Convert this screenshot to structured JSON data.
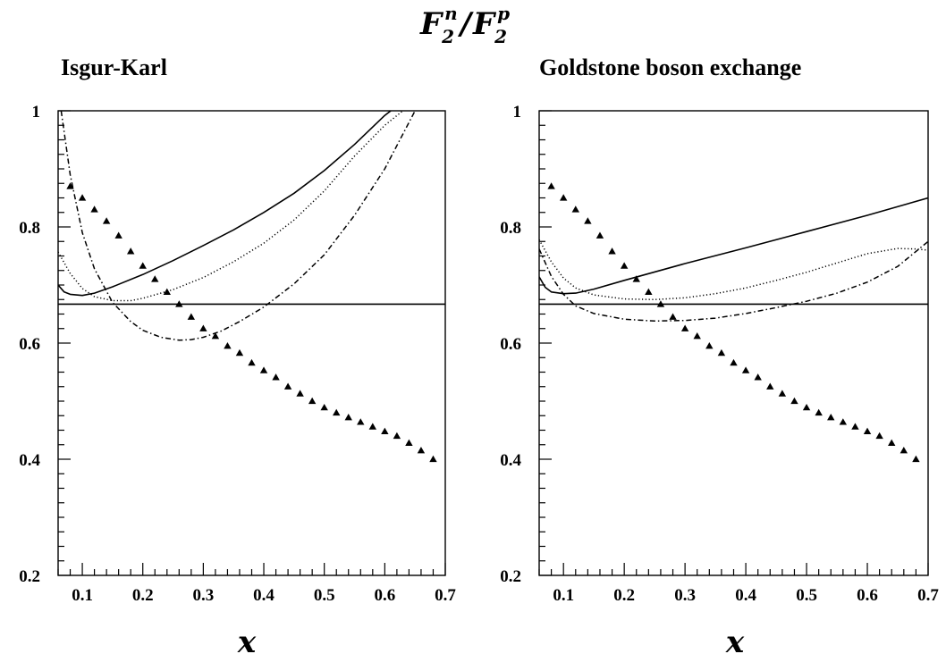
{
  "figure": {
    "title_main": "F",
    "title_sup_n": "n",
    "title_sub_2a": "2",
    "title_slash": "/",
    "title_main2": "F",
    "title_sup_p": "p",
    "title_sub_2b": "2"
  },
  "chart_data": [
    {
      "type": "line",
      "title": "Isgur-Karl",
      "xlabel": "x",
      "ylabel": "",
      "xlim": [
        0.06,
        0.7
      ],
      "ylim": [
        0.2,
        1.0
      ],
      "x_ticks": [
        0.1,
        0.2,
        0.3,
        0.4,
        0.5,
        0.6,
        0.7
      ],
      "x_tick_labels": [
        "0.1",
        "0.2",
        "0.3",
        "0.4",
        "0.5",
        "0.6",
        "0.7"
      ],
      "y_ticks": [
        0.2,
        0.4,
        0.6,
        0.8,
        1.0
      ],
      "y_tick_labels": [
        "0.2",
        "0.4",
        "0.6",
        "0.8",
        "1"
      ],
      "grid": false,
      "reference_line": 0.667,
      "series": [
        {
          "style": "solid",
          "x": [
            0.06,
            0.07,
            0.08,
            0.1,
            0.12,
            0.15,
            0.2,
            0.25,
            0.3,
            0.35,
            0.4,
            0.45,
            0.5,
            0.55,
            0.6,
            0.61
          ],
          "y": [
            0.7,
            0.688,
            0.684,
            0.682,
            0.686,
            0.697,
            0.718,
            0.742,
            0.768,
            0.795,
            0.825,
            0.858,
            0.897,
            0.942,
            0.992,
            1.0
          ]
        },
        {
          "style": "dotted",
          "x": [
            0.06,
            0.08,
            0.1,
            0.12,
            0.15,
            0.18,
            0.2,
            0.25,
            0.3,
            0.35,
            0.4,
            0.45,
            0.5,
            0.55,
            0.6,
            0.63
          ],
          "y": [
            0.757,
            0.72,
            0.694,
            0.68,
            0.673,
            0.673,
            0.677,
            0.692,
            0.713,
            0.74,
            0.772,
            0.812,
            0.862,
            0.922,
            0.975,
            1.0
          ]
        },
        {
          "style": "dashdot",
          "x": [
            0.065,
            0.08,
            0.1,
            0.12,
            0.15,
            0.18,
            0.2,
            0.23,
            0.26,
            0.28,
            0.3,
            0.33,
            0.36,
            0.4,
            0.45,
            0.5,
            0.55,
            0.6,
            0.65
          ],
          "y": [
            1.0,
            0.89,
            0.79,
            0.728,
            0.67,
            0.637,
            0.622,
            0.61,
            0.605,
            0.606,
            0.61,
            0.621,
            0.637,
            0.662,
            0.702,
            0.752,
            0.82,
            0.9,
            1.0
          ]
        },
        {
          "style": "triangles",
          "x": [
            0.08,
            0.1,
            0.12,
            0.14,
            0.16,
            0.18,
            0.2,
            0.22,
            0.24,
            0.26,
            0.28,
            0.3,
            0.32,
            0.34,
            0.36,
            0.38,
            0.4,
            0.42,
            0.44,
            0.46,
            0.48,
            0.5,
            0.52,
            0.54,
            0.56,
            0.58,
            0.6,
            0.62,
            0.64,
            0.66,
            0.68
          ],
          "y": [
            0.87,
            0.85,
            0.83,
            0.81,
            0.785,
            0.758,
            0.733,
            0.71,
            0.688,
            0.667,
            0.645,
            0.625,
            0.612,
            0.595,
            0.583,
            0.566,
            0.553,
            0.541,
            0.525,
            0.513,
            0.5,
            0.489,
            0.48,
            0.472,
            0.464,
            0.456,
            0.448,
            0.44,
            0.428,
            0.415,
            0.4
          ]
        }
      ]
    },
    {
      "type": "line",
      "title": "Goldstone boson exchange",
      "xlabel": "x",
      "ylabel": "",
      "xlim": [
        0.06,
        0.7
      ],
      "ylim": [
        0.2,
        1.0
      ],
      "x_ticks": [
        0.1,
        0.2,
        0.3,
        0.4,
        0.5,
        0.6,
        0.7
      ],
      "x_tick_labels": [
        "0.1",
        "0.2",
        "0.3",
        "0.4",
        "0.5",
        "0.6",
        "0.7"
      ],
      "y_ticks": [
        0.2,
        0.4,
        0.6,
        0.8,
        1.0
      ],
      "y_tick_labels": [
        "0.2",
        "0.4",
        "0.6",
        "0.8",
        "1"
      ],
      "grid": false,
      "reference_line": 0.667,
      "series": [
        {
          "style": "solid",
          "x": [
            0.06,
            0.07,
            0.08,
            0.1,
            0.12,
            0.15,
            0.2,
            0.3,
            0.4,
            0.5,
            0.6,
            0.7
          ],
          "y": [
            0.714,
            0.696,
            0.688,
            0.685,
            0.686,
            0.693,
            0.708,
            0.737,
            0.764,
            0.792,
            0.82,
            0.85
          ]
        },
        {
          "style": "dotted",
          "x": [
            0.06,
            0.08,
            0.1,
            0.12,
            0.15,
            0.2,
            0.25,
            0.3,
            0.35,
            0.4,
            0.45,
            0.5,
            0.55,
            0.6,
            0.65,
            0.68,
            0.7
          ],
          "y": [
            0.778,
            0.74,
            0.712,
            0.695,
            0.683,
            0.676,
            0.675,
            0.678,
            0.685,
            0.695,
            0.708,
            0.722,
            0.738,
            0.754,
            0.763,
            0.762,
            0.76
          ]
        },
        {
          "style": "dashdot",
          "x": [
            0.06,
            0.08,
            0.1,
            0.12,
            0.15,
            0.2,
            0.25,
            0.3,
            0.35,
            0.4,
            0.45,
            0.5,
            0.55,
            0.6,
            0.65,
            0.7
          ],
          "y": [
            0.762,
            0.715,
            0.684,
            0.664,
            0.651,
            0.641,
            0.638,
            0.639,
            0.643,
            0.651,
            0.661,
            0.672,
            0.686,
            0.705,
            0.732,
            0.775
          ]
        },
        {
          "style": "triangles",
          "x": [
            0.08,
            0.1,
            0.12,
            0.14,
            0.16,
            0.18,
            0.2,
            0.22,
            0.24,
            0.26,
            0.28,
            0.3,
            0.32,
            0.34,
            0.36,
            0.38,
            0.4,
            0.42,
            0.44,
            0.46,
            0.48,
            0.5,
            0.52,
            0.54,
            0.56,
            0.58,
            0.6,
            0.62,
            0.64,
            0.66,
            0.68
          ],
          "y": [
            0.87,
            0.85,
            0.83,
            0.81,
            0.785,
            0.758,
            0.733,
            0.71,
            0.688,
            0.667,
            0.645,
            0.625,
            0.612,
            0.595,
            0.583,
            0.566,
            0.553,
            0.541,
            0.525,
            0.513,
            0.5,
            0.489,
            0.48,
            0.472,
            0.464,
            0.456,
            0.448,
            0.44,
            0.428,
            0.415,
            0.4
          ]
        }
      ]
    }
  ]
}
